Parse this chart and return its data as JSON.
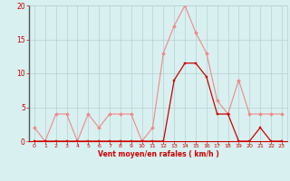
{
  "x": [
    0,
    1,
    2,
    3,
    4,
    5,
    6,
    7,
    8,
    9,
    10,
    11,
    12,
    13,
    14,
    15,
    16,
    17,
    18,
    19,
    20,
    21,
    22,
    23
  ],
  "rafales": [
    2,
    0,
    4,
    4,
    0,
    4,
    2,
    4,
    4,
    4,
    0,
    2,
    13,
    17,
    20,
    16,
    13,
    6,
    4,
    9,
    4,
    4,
    4,
    4
  ],
  "moyen": [
    0,
    0,
    0,
    0,
    0,
    0,
    0,
    0,
    0,
    0,
    0,
    0,
    0,
    9,
    11.5,
    11.5,
    9.5,
    4,
    4,
    0,
    0,
    2,
    0,
    0
  ],
  "bg_color": "#d8f0f0",
  "grid_color": "#b8d0d0",
  "line_color_rafales": "#f08888",
  "line_color_moyen": "#cc0000",
  "xlabel": "Vent moyen/en rafales ( km/h )",
  "ylim": [
    0,
    20
  ],
  "xlim": [
    -0.5,
    23.5
  ],
  "yticks": [
    0,
    5,
    10,
    15,
    20
  ],
  "xticks": [
    0,
    1,
    2,
    3,
    4,
    5,
    6,
    7,
    8,
    9,
    10,
    11,
    12,
    13,
    14,
    15,
    16,
    17,
    18,
    19,
    20,
    21,
    22,
    23
  ],
  "spine_color": "#555555"
}
